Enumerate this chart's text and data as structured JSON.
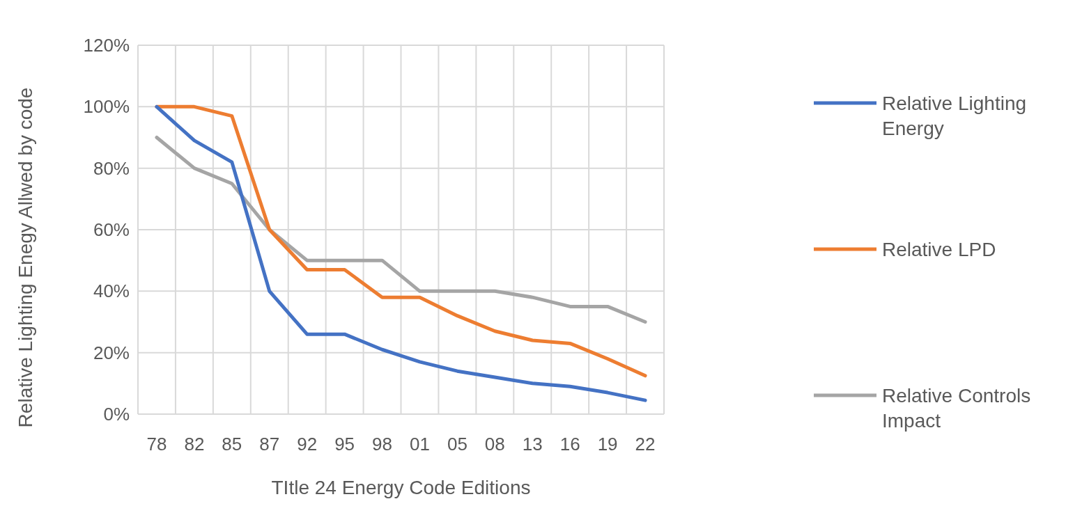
{
  "chart_data": {
    "type": "line",
    "xlabel": "TItle 24 Energy Code Editions",
    "ylabel": "Relative Lighting Enegy Allwed by code",
    "categories": [
      "78",
      "82",
      "85",
      "87",
      "92",
      "95",
      "98",
      "01",
      "05",
      "08",
      "13",
      "16",
      "19",
      "22"
    ],
    "series": [
      {
        "name": "Relative Lighting Energy",
        "color": "#4472c4",
        "values": [
          100,
          89,
          82,
          40,
          26,
          26,
          21,
          17,
          14,
          12,
          10,
          9,
          7,
          4.5
        ]
      },
      {
        "name": "Relative LPD",
        "color": "#ed7d31",
        "values": [
          100,
          100,
          97,
          60,
          47,
          47,
          38,
          38,
          32,
          27,
          24,
          23,
          18,
          12.5
        ]
      },
      {
        "name": "Relative Controls Impact",
        "color": "#a5a5a5",
        "values": [
          90,
          80,
          75,
          60,
          50,
          50,
          50,
          40,
          40,
          40,
          38,
          35,
          35,
          30
        ]
      }
    ],
    "ylim": [
      0,
      120
    ],
    "yticks": [
      {
        "value": 0,
        "label": "0%"
      },
      {
        "value": 20,
        "label": "20%"
      },
      {
        "value": 40,
        "label": "40%"
      },
      {
        "value": 60,
        "label": "60%"
      },
      {
        "value": 80,
        "label": "80%"
      },
      {
        "value": 100,
        "label": "100%"
      },
      {
        "value": 120,
        "label": "120%"
      }
    ],
    "grid": true,
    "legend": "right",
    "marker": "none",
    "line_style": "solid"
  }
}
